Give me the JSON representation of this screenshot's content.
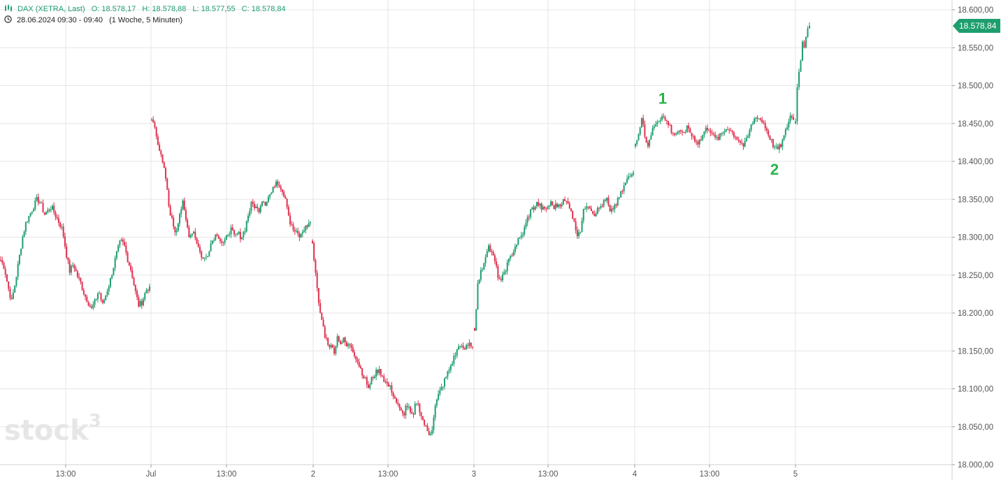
{
  "header": {
    "instrument": "DAX (XETRA, Last)",
    "open": "O: 18.578,17",
    "high": "H: 18.578,88",
    "low": "L: 18.577,55",
    "close": "C: 18.578,84",
    "datetime": "28.06.2024 09:30 - 09:40",
    "period": "(1 Woche, 5 Minuten)"
  },
  "watermark": {
    "text": "stock",
    "sup": "3"
  },
  "colors": {
    "up": "#1e9e6e",
    "down": "#e0304e",
    "grid": "#e6e6e6",
    "last_price_badge": "#1e9e6e"
  },
  "chart_data": {
    "type": "candlestick",
    "title": "",
    "xlabel": "",
    "ylabel": "",
    "ylim": [
      18000,
      18600
    ],
    "y_axis_position": "right",
    "grid": true,
    "y_ticks": [
      "18.600,00",
      "18.550,00",
      "18.500,00",
      "18.450,00",
      "18.400,00",
      "18.350,00",
      "18.300,00",
      "18.250,00",
      "18.200,00",
      "18.150,00",
      "18.100,00",
      "18.050,00",
      "18.000,00"
    ],
    "x_ticks": [
      "13:00",
      "Jul",
      "13:00",
      "2",
      "13:00",
      "3",
      "13:00",
      "4",
      "13:00",
      "5"
    ],
    "last_price": 18578.84,
    "last_price_label": "18.578,84",
    "annotations": [
      {
        "label": "1",
        "at": "4 ~10:00",
        "value": 18465,
        "color": "#2ab24a"
      },
      {
        "label": "2",
        "at": "4 ~16:30",
        "value": 18410,
        "color": "#2ab24a"
      }
    ],
    "sessions": [
      {
        "day": "28.06",
        "path": [
          18270,
          18260,
          18235,
          18215,
          18240,
          18270,
          18300,
          18320,
          18330,
          18340,
          18350,
          18345,
          18330,
          18335,
          18340,
          18330,
          18320,
          18310,
          18280,
          18255,
          18265,
          18250,
          18240,
          18225,
          18215,
          18205,
          18215,
          18230,
          18210,
          18225,
          18240,
          18260,
          18280,
          18295,
          18290,
          18270,
          18255,
          18230,
          18210,
          18215,
          18230,
          18235
        ]
      },
      {
        "day": "01.07",
        "path": [
          18455,
          18445,
          18420,
          18400,
          18380,
          18340,
          18320,
          18305,
          18330,
          18345,
          18320,
          18300,
          18310,
          18295,
          18280,
          18270,
          18275,
          18290,
          18300,
          18305,
          18295,
          18290,
          18305,
          18310,
          18300,
          18305,
          18300,
          18310,
          18330,
          18345,
          18340,
          18335,
          18350,
          18345,
          18355,
          18360,
          18375,
          18370,
          18360,
          18350,
          18320,
          18310,
          18305,
          18300,
          18310,
          18315,
          18320
        ]
      },
      {
        "day": "02.07",
        "path": [
          18295,
          18250,
          18210,
          18190,
          18170,
          18160,
          18155,
          18150,
          18170,
          18160,
          18165,
          18155,
          18160,
          18150,
          18140,
          18130,
          18120,
          18110,
          18100,
          18115,
          18120,
          18125,
          18120,
          18110,
          18105,
          18100,
          18090,
          18080,
          18070,
          18065,
          18080,
          18070,
          18060,
          18085,
          18075,
          18060,
          18050,
          18040,
          18045,
          18075,
          18090,
          18100,
          18110,
          18120,
          18130,
          18140,
          18150,
          18160,
          18150,
          18155,
          18160,
          18155
        ]
      },
      {
        "day": "03.07",
        "path": [
          18180,
          18240,
          18255,
          18270,
          18290,
          18280,
          18270,
          18250,
          18240,
          18255,
          18265,
          18275,
          18285,
          18295,
          18300,
          18310,
          18325,
          18335,
          18340,
          18345,
          18340,
          18335,
          18340,
          18345,
          18340,
          18342,
          18345,
          18348,
          18345,
          18340,
          18320,
          18305,
          18310,
          18335,
          18345,
          18340,
          18330,
          18335,
          18340,
          18345,
          18350,
          18330,
          18340,
          18345,
          18355,
          18365,
          18375,
          18380,
          18385
        ]
      },
      {
        "day": "04.07",
        "path": [
          18420,
          18440,
          18460,
          18430,
          18420,
          18440,
          18450,
          18455,
          18460,
          18455,
          18450,
          18440,
          18435,
          18440,
          18435,
          18440,
          18445,
          18435,
          18430,
          18425,
          18430,
          18440,
          18445,
          18440,
          18430,
          18430,
          18435,
          18440,
          18445,
          18440,
          18435,
          18430,
          18425,
          18420,
          18430,
          18445,
          18455,
          18460,
          18455,
          18450,
          18440,
          18430,
          18420,
          18415,
          18420,
          18430,
          18445,
          18460,
          18455
        ]
      },
      {
        "day": "05.07",
        "path": [
          18450,
          18510,
          18530,
          18555,
          18550,
          18575,
          18578.84
        ]
      }
    ]
  }
}
